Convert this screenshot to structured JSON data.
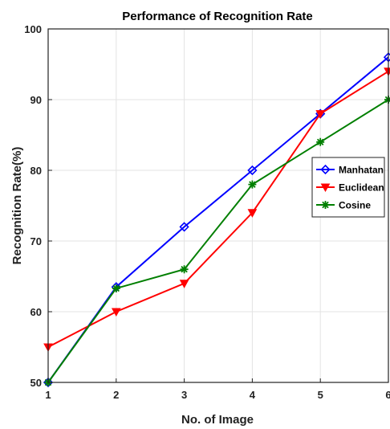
{
  "chart_data": {
    "type": "line",
    "title": "Performance of Recognition Rate",
    "xlabel": "No. of Image",
    "ylabel": "Recognition Rate(%)",
    "x": [
      1,
      2,
      3,
      4,
      5,
      6
    ],
    "xlim": [
      1,
      6
    ],
    "ylim": [
      50,
      100
    ],
    "xticks": [
      1,
      2,
      3,
      4,
      5,
      6
    ],
    "yticks": [
      50,
      60,
      70,
      80,
      90,
      100
    ],
    "grid": true,
    "legend_position": "right",
    "series": [
      {
        "name": "Manhatan",
        "color": "#0000ff",
        "marker": "diamond",
        "values": [
          50,
          63.5,
          72,
          80,
          88,
          96
        ]
      },
      {
        "name": "Euclidean",
        "color": "#ff0000",
        "marker": "triangle-down",
        "values": [
          55,
          60,
          64,
          74,
          88,
          94
        ]
      },
      {
        "name": "Cosine",
        "color": "#007f00",
        "marker": "star",
        "values": [
          50,
          63.3,
          66,
          78,
          84,
          90
        ]
      }
    ]
  }
}
